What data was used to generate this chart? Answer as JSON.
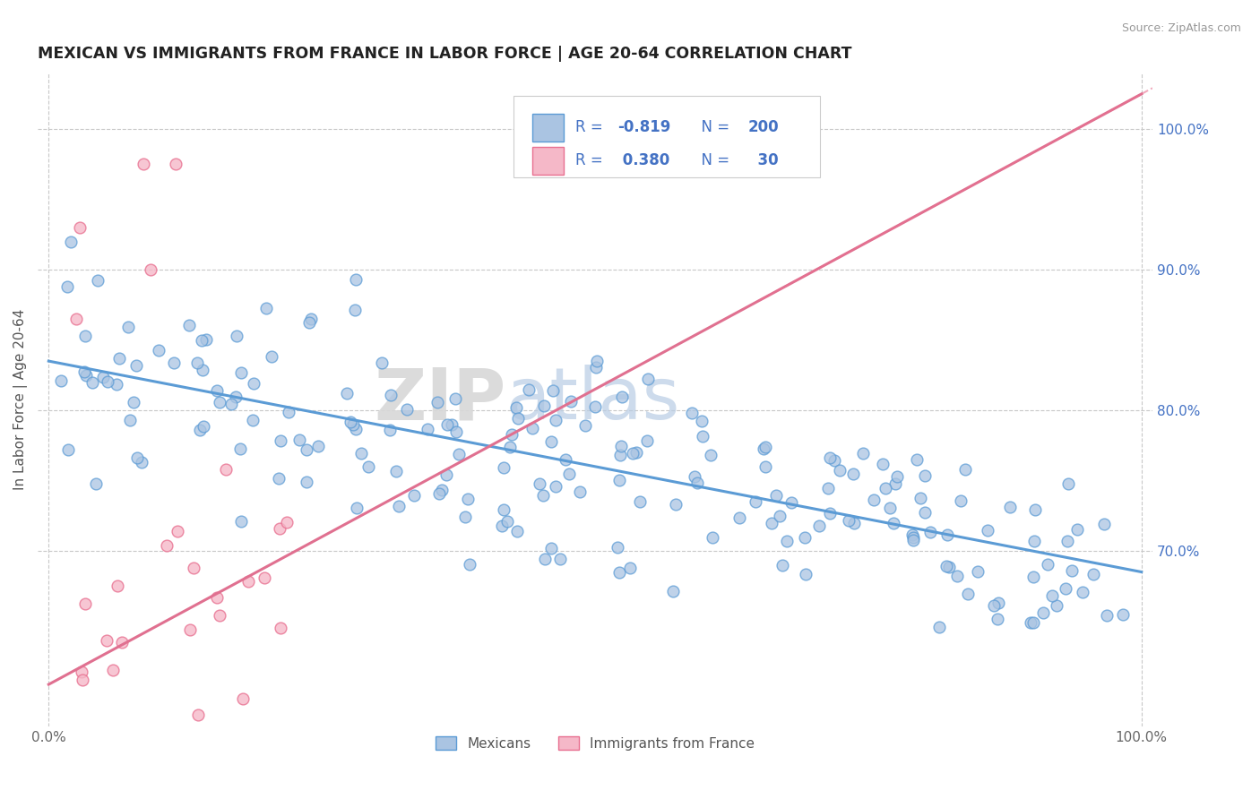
{
  "title": "MEXICAN VS IMMIGRANTS FROM FRANCE IN LABOR FORCE | AGE 20-64 CORRELATION CHART",
  "source": "Source: ZipAtlas.com",
  "ylabel": "In Labor Force | Age 20-64",
  "ytick_labels": [
    "70.0%",
    "80.0%",
    "90.0%",
    "100.0%"
  ],
  "ytick_values": [
    0.7,
    0.8,
    0.9,
    1.0
  ],
  "xlim": [
    -0.01,
    1.01
  ],
  "ylim": [
    0.575,
    1.04
  ],
  "blue_R": -0.819,
  "blue_N": 200,
  "pink_R": 0.38,
  "pink_N": 30,
  "blue_fill": "#aac4e2",
  "blue_edge": "#5b9bd5",
  "pink_fill": "#f5b8c8",
  "pink_edge": "#e87090",
  "pink_line_color": "#e07090",
  "blue_line_color": "#5b9bd5",
  "watermark_zip": "ZIP",
  "watermark_atlas": "atlas",
  "legend_label_blue": "Mexicans",
  "legend_label_pink": "Immigrants from France",
  "blue_slope": -0.15,
  "blue_intercept": 0.835,
  "pink_slope": 0.42,
  "pink_intercept": 0.605,
  "grid_color": "#c8c8c8",
  "background_color": "#ffffff",
  "text_color_blue": "#4472c4",
  "text_color_dark": "#333333",
  "source_color": "#999999"
}
